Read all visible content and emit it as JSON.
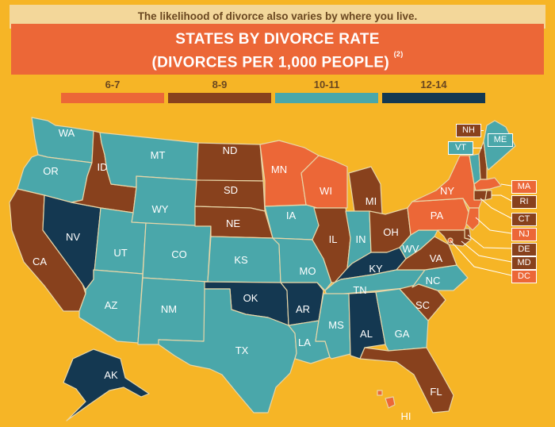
{
  "header": {
    "intro": "The likelihood of divorce also varies by where you live.",
    "title_line1": "STATES BY DIVORCE RATE",
    "title_line2": "(DIVORCES PER 1,000 PEOPLE)",
    "footnote": "(2)"
  },
  "colors": {
    "background": "#f6b526",
    "banner": "#ec6737",
    "rate_6_7": "#ec6737",
    "rate_8_9": "#88411d",
    "rate_10_11": "#4aa7aa",
    "rate_12_14": "#143851"
  },
  "legend": [
    {
      "label": "6-7",
      "category": "rate_6_7"
    },
    {
      "label": "8-9",
      "category": "rate_8_9"
    },
    {
      "label": "10-11",
      "category": "rate_10_11"
    },
    {
      "label": "12-14",
      "category": "rate_12_14"
    }
  ],
  "states": {
    "WA": "rate_10_11",
    "OR": "rate_10_11",
    "CA": "rate_8_9",
    "NV": "rate_12_14",
    "ID": "rate_8_9",
    "MT": "rate_10_11",
    "WY": "rate_10_11",
    "UT": "rate_10_11",
    "AZ": "rate_10_11",
    "CO": "rate_10_11",
    "NM": "rate_10_11",
    "ND": "rate_8_9",
    "SD": "rate_8_9",
    "NE": "rate_8_9",
    "KS": "rate_10_11",
    "OK": "rate_12_14",
    "TX": "rate_10_11",
    "MN": "rate_6_7",
    "IA": "rate_10_11",
    "MO": "rate_10_11",
    "AR": "rate_12_14",
    "LA": "rate_10_11",
    "WI": "rate_6_7",
    "IL": "rate_8_9",
    "MI": "rate_8_9",
    "IN": "rate_10_11",
    "OH": "rate_8_9",
    "KY": "rate_12_14",
    "TN": "rate_10_11",
    "MS": "rate_10_11",
    "AL": "rate_12_14",
    "GA": "rate_10_11",
    "FL": "rate_8_9",
    "SC": "rate_8_9",
    "NC": "rate_10_11",
    "VA": "rate_8_9",
    "WV": "rate_10_11",
    "PA": "rate_6_7",
    "NY": "rate_6_7",
    "VT": "rate_10_11",
    "NH": "rate_8_9",
    "ME": "rate_10_11",
    "MA": "rate_6_7",
    "RI": "rate_8_9",
    "CT": "rate_8_9",
    "NJ": "rate_6_7",
    "DE": "rate_8_9",
    "MD": "rate_8_9",
    "DC": "rate_6_7",
    "AK": "rate_12_14",
    "HI": "rate_6_7"
  }
}
